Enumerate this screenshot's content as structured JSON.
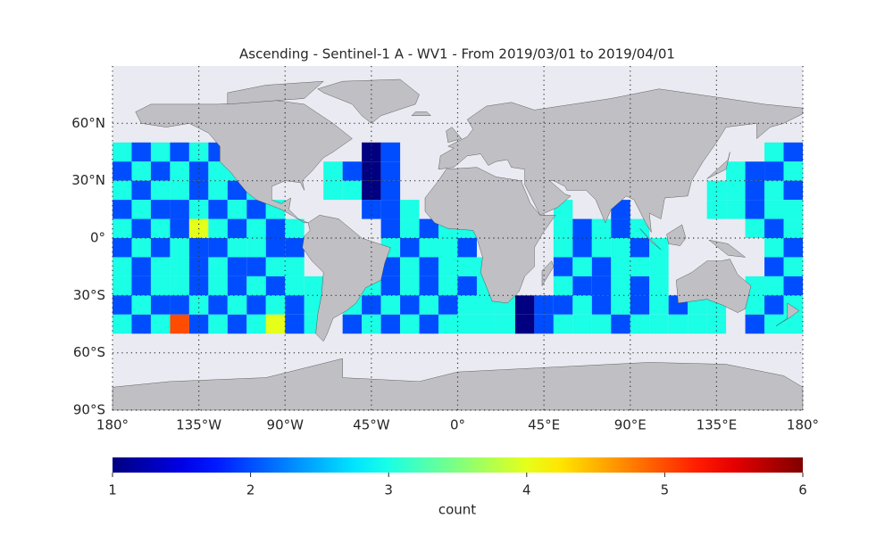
{
  "chart_data": {
    "type": "map",
    "title": "Ascending - Sentinel-1 A - WV1 - From 2019/03/01 to 2019/04/01",
    "xlim": [
      -180,
      180
    ],
    "ylim": [
      -90,
      90
    ],
    "xticks": [
      {
        "value": -180,
        "label": "180°"
      },
      {
        "value": -135,
        "label": "135°W"
      },
      {
        "value": -90,
        "label": "90°W"
      },
      {
        "value": -45,
        "label": "45°W"
      },
      {
        "value": 0,
        "label": "0°"
      },
      {
        "value": 45,
        "label": "45°E"
      },
      {
        "value": 90,
        "label": "90°E"
      },
      {
        "value": 135,
        "label": "135°E"
      },
      {
        "value": 180,
        "label": "180°"
      }
    ],
    "yticks": [
      {
        "value": -90,
        "label": "90°S"
      },
      {
        "value": -60,
        "label": "60°S"
      },
      {
        "value": -30,
        "label": "30°S"
      },
      {
        "value": 0,
        "label": "0°"
      },
      {
        "value": 30,
        "label": "30°N"
      },
      {
        "value": 60,
        "label": "60°N"
      }
    ],
    "grid": true,
    "lon_bins": [
      -180,
      -170,
      -160,
      -150,
      -140,
      -130,
      -120,
      -110,
      -100,
      -90,
      -80,
      -70,
      -60,
      -50,
      -40,
      -30,
      -20,
      -10,
      0,
      10,
      20,
      30,
      40,
      50,
      60,
      70,
      80,
      90,
      100,
      110,
      120,
      130,
      140,
      150,
      160,
      170,
      180
    ],
    "lat_bins": [
      50,
      40,
      30,
      20,
      10,
      0,
      -10,
      -20,
      -30,
      -40,
      -50
    ],
    "counts": [
      [
        3,
        2,
        3,
        2,
        3,
        2,
        null,
        null,
        null,
        null,
        null,
        null,
        null,
        1,
        2,
        null,
        null,
        null,
        null,
        null,
        null,
        null,
        null,
        null,
        null,
        null,
        null,
        null,
        null,
        null,
        null,
        null,
        null,
        null,
        3,
        2
      ],
      [
        2,
        3,
        2,
        3,
        2,
        3,
        3,
        null,
        null,
        null,
        null,
        3,
        2,
        1,
        2,
        null,
        null,
        null,
        null,
        null,
        null,
        null,
        null,
        null,
        null,
        null,
        null,
        null,
        null,
        null,
        null,
        null,
        3,
        2,
        2,
        3
      ],
      [
        3,
        2,
        3,
        3,
        2,
        3,
        2,
        3,
        null,
        null,
        null,
        3,
        3,
        1,
        2,
        null,
        null,
        null,
        null,
        null,
        null,
        null,
        null,
        null,
        null,
        null,
        null,
        null,
        null,
        null,
        null,
        3,
        3,
        2,
        3,
        2
      ],
      [
        2,
        3,
        2,
        2,
        3,
        2,
        3,
        2,
        3,
        null,
        null,
        null,
        null,
        2,
        2,
        3,
        null,
        null,
        null,
        null,
        null,
        null,
        null,
        3,
        null,
        null,
        2,
        null,
        null,
        null,
        null,
        3,
        3,
        2,
        3,
        3
      ],
      [
        3,
        2,
        3,
        2,
        4,
        3,
        2,
        3,
        2,
        3,
        null,
        null,
        null,
        null,
        2,
        3,
        2,
        3,
        3,
        null,
        null,
        null,
        null,
        3,
        2,
        3,
        2,
        3,
        null,
        null,
        null,
        null,
        null,
        3,
        2,
        3
      ],
      [
        2,
        3,
        2,
        3,
        2,
        2,
        3,
        3,
        2,
        2,
        null,
        null,
        null,
        null,
        3,
        2,
        3,
        3,
        2,
        null,
        null,
        null,
        null,
        3,
        2,
        3,
        3,
        2,
        3,
        null,
        null,
        null,
        null,
        null,
        3,
        2
      ],
      [
        3,
        2,
        3,
        3,
        2,
        3,
        2,
        2,
        3,
        3,
        null,
        null,
        null,
        null,
        2,
        3,
        2,
        3,
        3,
        3,
        null,
        null,
        null,
        2,
        3,
        2,
        3,
        3,
        3,
        null,
        null,
        null,
        null,
        null,
        2,
        3
      ],
      [
        3,
        2,
        3,
        3,
        2,
        3,
        2,
        3,
        2,
        3,
        3,
        null,
        null,
        3,
        2,
        3,
        2,
        3,
        2,
        3,
        null,
        null,
        null,
        3,
        2,
        2,
        3,
        2,
        3,
        null,
        null,
        null,
        null,
        3,
        3,
        2
      ],
      [
        2,
        3,
        2,
        2,
        3,
        2,
        3,
        2,
        3,
        2,
        3,
        null,
        3,
        2,
        3,
        2,
        3,
        2,
        3,
        3,
        3,
        1,
        2,
        2,
        3,
        2,
        3,
        2,
        3,
        2,
        3,
        3,
        null,
        3,
        2,
        3
      ],
      [
        3,
        2,
        3,
        5,
        2,
        3,
        2,
        3,
        4,
        2,
        3,
        null,
        2,
        3,
        2,
        3,
        2,
        3,
        3,
        3,
        3,
        1,
        2,
        3,
        3,
        3,
        2,
        3,
        3,
        3,
        3,
        3,
        null,
        2,
        3,
        3
      ]
    ],
    "colorbar": {
      "label": "count",
      "colormap": "jet",
      "lim": [
        1,
        6
      ],
      "ticks": [
        1,
        2,
        3,
        4,
        5,
        6
      ]
    }
  }
}
